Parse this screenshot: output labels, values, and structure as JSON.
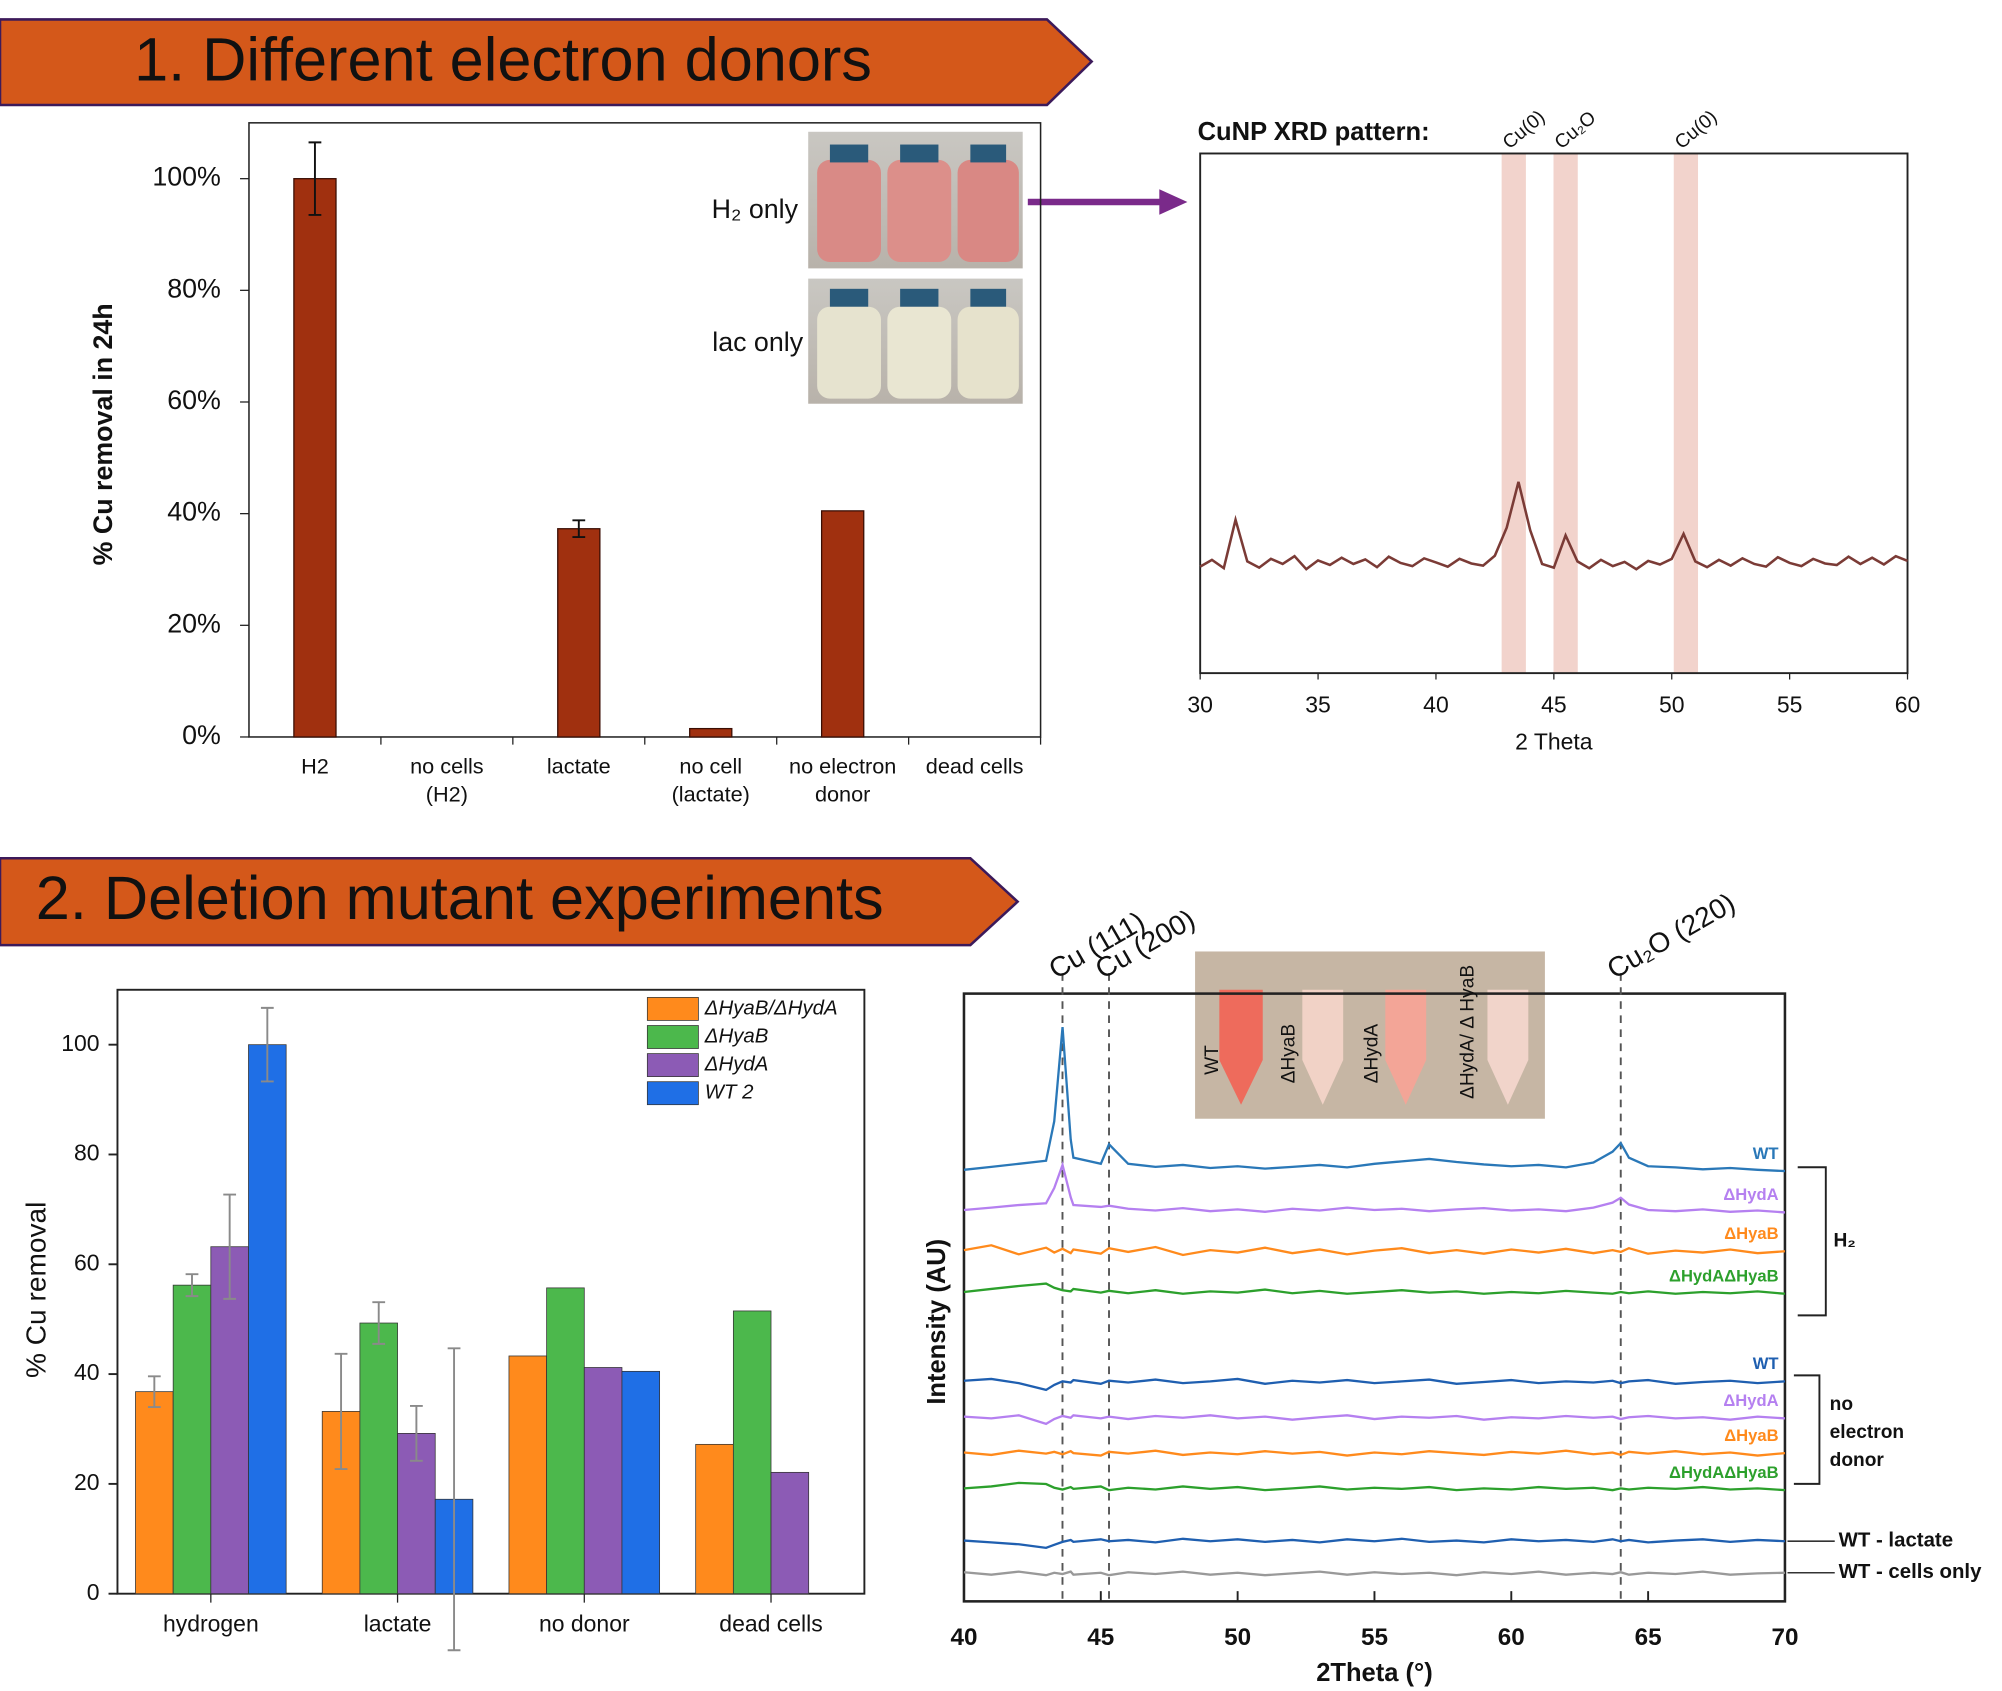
{
  "banners": [
    "1. Different electron donors",
    "2. Deletion mutant experiments"
  ],
  "chart_data": [
    {
      "type": "bar",
      "ylabel": "% Cu removal in 24h",
      "categories": [
        [
          "H2"
        ],
        [
          "no cells",
          "(H2)"
        ],
        [
          "lactate"
        ],
        [
          "no cell",
          "(lactate)"
        ],
        [
          "no electron",
          "donor"
        ],
        [
          "dead cells"
        ]
      ],
      "values": [
        100,
        0,
        37.3,
        1.5,
        40.5,
        0
      ],
      "errors": [
        6.5,
        null,
        1.5,
        null,
        null,
        null
      ],
      "color": "#a0300f",
      "ylim": [
        0,
        110
      ],
      "yticks": [
        {
          "value": 0,
          "label": "0%"
        },
        {
          "value": 20,
          "label": "20%"
        },
        {
          "value": 40,
          "label": "40%"
        },
        {
          "value": 60,
          "label": "60%"
        },
        {
          "value": 80,
          "label": "80%"
        },
        {
          "value": 100,
          "label": "100%"
        }
      ],
      "inset_labels": [
        "H₂ only",
        "lac only"
      ]
    },
    {
      "type": "line",
      "title": "CuNP XRD pattern:",
      "xlabel": "2 Theta",
      "xlim": [
        30,
        60
      ],
      "xticks": [
        30,
        35,
        40,
        45,
        50,
        55,
        60
      ],
      "ylim": [
        0,
        100
      ],
      "bands": [
        {
          "x": 43.3,
          "label": "Cu(0)"
        },
        {
          "x": 45.5,
          "label": "Cu₂O"
        },
        {
          "x": 50.6,
          "label": "Cu(0)"
        }
      ],
      "x": [
        30,
        30.5,
        31,
        31.5,
        32,
        32.5,
        33,
        33.5,
        34,
        34.5,
        35,
        35.5,
        36,
        36.5,
        37,
        37.5,
        38,
        38.5,
        39,
        39.5,
        40,
        40.5,
        41,
        41.5,
        42,
        42.5,
        43,
        43.5,
        44,
        44.5,
        45,
        45.5,
        46,
        46.5,
        47,
        47.5,
        48,
        48.5,
        49,
        49.5,
        50,
        50.5,
        51,
        51.5,
        52,
        52.5,
        53,
        53.5,
        54,
        54.5,
        55,
        55.5,
        56,
        56.5,
        57,
        57.5,
        58,
        58.5,
        59,
        59.5,
        60
      ],
      "series": [
        {
          "color": "#7b3b36",
          "values": [
            20.5,
            21.8,
            20.2,
            29.5,
            21.5,
            20.3,
            22.0,
            21.0,
            22.5,
            20.0,
            21.7,
            20.8,
            22.2,
            21.0,
            21.9,
            20.4,
            22.4,
            21.2,
            20.6,
            22.1,
            21.3,
            20.5,
            22.0,
            21.1,
            20.7,
            22.6,
            28,
            36.8,
            27.5,
            21.0,
            20.3,
            26.5,
            21.5,
            20.2,
            21.8,
            20.6,
            21.4,
            20.0,
            21.6,
            20.9,
            22.0,
            26.8,
            21.5,
            20.4,
            21.8,
            20.7,
            22.1,
            21.0,
            20.5,
            22.3,
            21.2,
            20.6,
            22.0,
            21.1,
            20.8,
            22.4,
            21.0,
            22.2,
            20.9,
            22.5,
            21.6
          ]
        }
      ]
    },
    {
      "type": "grouped_bar",
      "ylabel": "% Cu removal",
      "categories": [
        "hydrogen",
        "lactate",
        "no donor",
        "dead cells"
      ],
      "ylim": [
        0,
        110
      ],
      "yticks": [
        0,
        20,
        40,
        60,
        80,
        100
      ],
      "legend": "top-right",
      "series": [
        {
          "name": "ΔHyaB/ΔHydA",
          "color": "#ff8a1c",
          "values": [
            36.8,
            33.2,
            43.3,
            27.2
          ],
          "errors": [
            2.8,
            10.5,
            null,
            null
          ]
        },
        {
          "name": "ΔHyaB",
          "color": "#4cb84c",
          "values": [
            56.2,
            49.3,
            55.7,
            51.5
          ],
          "errors": [
            2,
            3.8,
            null,
            null
          ]
        },
        {
          "name": "ΔHydA",
          "color": "#8c5bb5",
          "values": [
            63.2,
            29.2,
            41.2,
            22.1
          ],
          "errors": [
            9.5,
            5,
            null,
            null
          ]
        },
        {
          "name": "WT 2",
          "color": "#1f6fe6",
          "values": [
            100,
            17.2,
            40.5,
            null
          ],
          "errors": [
            6.7,
            27.5,
            null,
            null
          ]
        }
      ]
    },
    {
      "type": "line",
      "xlabel": "2Theta (°)",
      "ylabel": "Intensity (AU)",
      "xlim": [
        40,
        70
      ],
      "xticks": [
        40,
        45,
        50,
        55,
        60,
        65,
        70
      ],
      "ylim": [
        0,
        100
      ],
      "reference_lines": [
        {
          "x": 43.6,
          "label": "Cu (111)"
        },
        {
          "x": 45.3,
          "label": "Cu (200)"
        },
        {
          "x": 64,
          "label": "Cu₂O (220)"
        }
      ],
      "brackets": [
        [
          "H₂"
        ],
        [
          "no",
          "electron",
          "donor"
        ]
      ],
      "inset_labels": [
        "WT",
        "ΔHyaB",
        "ΔHydA",
        "ΔHydA/ Δ HyaB"
      ],
      "x": [
        40,
        41,
        42,
        43,
        43.3,
        43.6,
        43.9,
        44,
        45,
        45.3,
        46,
        47,
        48,
        49,
        50,
        51,
        52,
        53,
        54,
        55,
        56,
        57,
        58,
        59,
        60,
        61,
        62,
        63,
        63.7,
        64,
        64.3,
        65,
        66,
        67,
        68,
        69,
        70
      ],
      "series": [
        {
          "name": "WT",
          "color": "#2a78b8",
          "values": [
            71.0,
            71.5,
            72.0,
            72.5,
            79,
            94.5,
            76,
            73,
            72,
            75.2,
            72,
            71.5,
            71.8,
            71.3,
            71.6,
            71.2,
            71.5,
            71.8,
            71.4,
            72.0,
            72.4,
            72.8,
            72.3,
            71.9,
            71.6,
            71.8,
            71.4,
            72.2,
            74,
            75.4,
            73,
            71.6,
            71.4,
            71.1,
            71.3,
            71.0,
            70.8
          ]
        },
        {
          "name": "ΔHydA",
          "color": "#b580f0",
          "values": [
            64.4,
            64.8,
            65.2,
            65.5,
            68,
            71.8,
            66.5,
            65.2,
            64.9,
            65.1,
            64.6,
            64.3,
            64.7,
            64.2,
            64.5,
            64.1,
            64.6,
            64.3,
            64.8,
            64.4,
            64.6,
            64.2,
            64.5,
            64.7,
            64.3,
            64.5,
            64.2,
            64.8,
            65.6,
            66.4,
            65.3,
            64.4,
            64.2,
            64.5,
            64.1,
            64.3,
            64.0
          ]
        },
        {
          "name": "ΔHyaB",
          "color": "#ff8a1c",
          "values": [
            57.8,
            58.6,
            57.1,
            58.2,
            57.4,
            58.0,
            57.3,
            57.9,
            57.2,
            58.1,
            57.5,
            58.3,
            57.0,
            57.8,
            57.4,
            58.2,
            57.3,
            57.9,
            57.1,
            57.7,
            58.1,
            57.3,
            57.8,
            57.2,
            57.9,
            57.4,
            58.0,
            57.3,
            57.8,
            57.5,
            58.1,
            57.2,
            57.7,
            57.4,
            57.9,
            57.3,
            57.6
          ]
        },
        {
          "name": "ΔHydAΔHyaB",
          "color": "#2ca02c",
          "values": [
            50.9,
            51.4,
            51.9,
            52.3,
            51.6,
            51.2,
            51.0,
            51.4,
            50.8,
            51.1,
            50.7,
            51.2,
            50.6,
            51.0,
            50.8,
            51.3,
            50.7,
            51.1,
            50.6,
            50.9,
            51.2,
            50.8,
            51.0,
            50.6,
            50.9,
            50.7,
            51.1,
            50.8,
            50.6,
            50.9,
            50.7,
            51.0,
            50.6,
            50.9,
            50.7,
            51.0,
            50.6
          ]
        },
        {
          "name": "WT",
          "color": "#1f5fb0",
          "values": [
            36.3,
            36.6,
            35.9,
            34.8,
            35.6,
            36.2,
            36.0,
            36.4,
            35.8,
            36.3,
            36.0,
            36.5,
            35.9,
            36.2,
            36.6,
            35.8,
            36.3,
            36.0,
            36.4,
            35.9,
            36.2,
            36.5,
            35.8,
            36.1,
            36.4,
            35.9,
            36.2,
            36.0,
            36.3,
            35.9,
            36.2,
            36.4,
            35.8,
            36.1,
            36.3,
            35.9,
            36.2
          ]
        },
        {
          "name": "ΔHydA",
          "color": "#b580f0",
          "values": [
            30.4,
            30.1,
            30.6,
            29.2,
            30.0,
            30.5,
            30.2,
            30.6,
            30.1,
            30.4,
            30.0,
            30.5,
            30.2,
            30.6,
            30.1,
            30.4,
            29.9,
            30.3,
            30.6,
            30.0,
            30.4,
            30.2,
            30.5,
            29.9,
            30.3,
            30.1,
            30.5,
            30.2,
            30.4,
            30.0,
            30.3,
            30.5,
            30.1,
            30.3,
            29.9,
            30.4,
            30.1
          ]
        },
        {
          "name": "ΔHyaB",
          "color": "#ff8a1c",
          "values": [
            24.5,
            24.1,
            24.8,
            24.3,
            24.6,
            24.2,
            24.7,
            24.4,
            24.0,
            24.6,
            24.3,
            24.8,
            24.1,
            24.5,
            24.2,
            24.7,
            24.3,
            24.6,
            24.0,
            24.5,
            24.2,
            24.7,
            24.4,
            24.1,
            24.6,
            24.3,
            24.8,
            24.2,
            24.5,
            24.1,
            24.6,
            24.3,
            24.7,
            24.2,
            24.5,
            24.0,
            24.4
          ]
        },
        {
          "name": "ΔHydAΔHyaB",
          "color": "#2ca02c",
          "values": [
            18.6,
            18.9,
            19.5,
            19.3,
            18.7,
            18.4,
            18.8,
            18.5,
            18.9,
            18.3,
            18.7,
            18.4,
            18.9,
            18.5,
            18.8,
            18.3,
            18.6,
            18.9,
            18.4,
            18.7,
            18.5,
            18.8,
            18.3,
            18.6,
            18.4,
            18.8,
            18.5,
            18.7,
            18.3,
            18.6,
            18.4,
            18.7,
            18.5,
            18.8,
            18.4,
            18.6,
            18.3
          ]
        },
        {
          "name": "WT - lactate",
          "color": "#1f5fb0",
          "values": [
            10.0,
            9.7,
            9.4,
            8.8,
            9.3,
            9.8,
            10.1,
            9.8,
            10.2,
            9.9,
            10.1,
            9.7,
            10.3,
            9.9,
            10.2,
            9.8,
            10.1,
            9.7,
            10.2,
            9.9,
            10.3,
            9.8,
            10.0,
            9.7,
            10.2,
            9.9,
            10.1,
            9.8,
            10.2,
            9.9,
            10.1,
            9.7,
            10.0,
            10.2,
            9.8,
            10.1,
            9.9
          ]
        },
        {
          "name": "WT - cells only",
          "color": "#999999",
          "values": [
            4.8,
            4.4,
            4.9,
            4.3,
            4.7,
            4.5,
            4.9,
            4.4,
            4.7,
            4.3,
            4.8,
            4.5,
            4.9,
            4.4,
            4.7,
            4.3,
            4.6,
            4.9,
            4.4,
            4.8,
            4.5,
            4.7,
            4.3,
            4.8,
            4.5,
            4.9,
            4.4,
            4.7,
            4.5,
            4.8,
            4.4,
            4.7,
            4.5,
            4.9,
            4.4,
            4.6,
            4.7
          ]
        }
      ]
    }
  ]
}
